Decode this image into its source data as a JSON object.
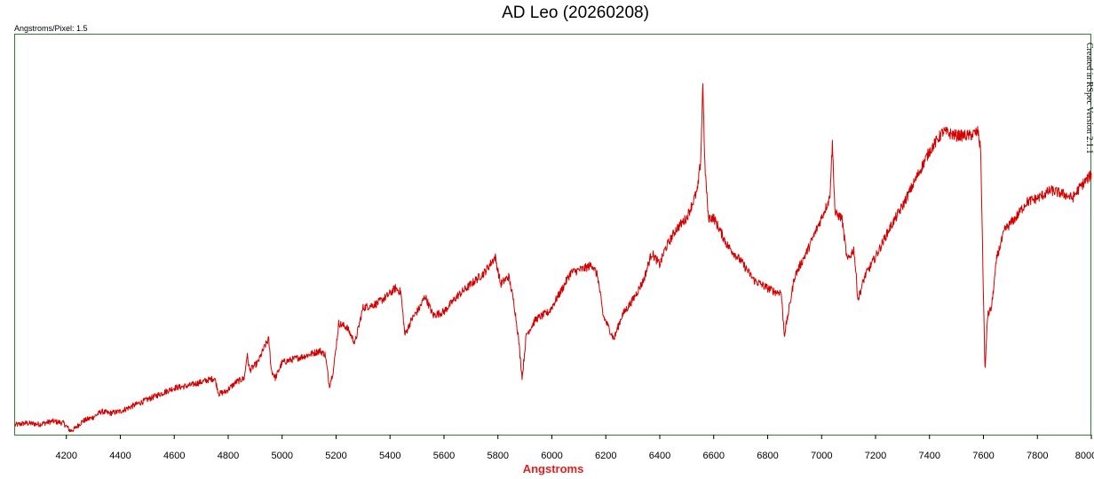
{
  "chart_data": {
    "type": "line",
    "title": "AD Leo (20260208)",
    "subtitle_left": "Angstroms/Pixel: 1.5",
    "credit": "Created in RSpec Version 2.1.1",
    "xlabel": "Angstroms",
    "ylabel": "",
    "xlim": [
      4010,
      8000
    ],
    "ylim": [
      0,
      1
    ],
    "x_ticks": [
      4200,
      4400,
      4600,
      4800,
      5000,
      5200,
      5400,
      5600,
      5800,
      6000,
      6200,
      6400,
      6600,
      6800,
      7000,
      7200,
      7400,
      7600,
      7800,
      8000
    ],
    "grid": false,
    "legend": "none",
    "series": [
      {
        "color": "#d40000",
        "noise": 0.022,
        "points": [
          [
            4010,
            0.02
          ],
          [
            4050,
            0.025
          ],
          [
            4100,
            0.022
          ],
          [
            4150,
            0.03
          ],
          [
            4190,
            0.025
          ],
          [
            4215,
            0.005
          ],
          [
            4230,
            0.01
          ],
          [
            4260,
            0.03
          ],
          [
            4300,
            0.04
          ],
          [
            4330,
            0.055
          ],
          [
            4360,
            0.05
          ],
          [
            4400,
            0.055
          ],
          [
            4450,
            0.07
          ],
          [
            4500,
            0.085
          ],
          [
            4550,
            0.1
          ],
          [
            4600,
            0.115
          ],
          [
            4650,
            0.12
          ],
          [
            4700,
            0.13
          ],
          [
            4750,
            0.14
          ],
          [
            4765,
            0.1
          ],
          [
            4790,
            0.105
          ],
          [
            4830,
            0.13
          ],
          [
            4860,
            0.14
          ],
          [
            4870,
            0.2
          ],
          [
            4880,
            0.16
          ],
          [
            4910,
            0.18
          ],
          [
            4935,
            0.22
          ],
          [
            4950,
            0.24
          ],
          [
            4960,
            0.16
          ],
          [
            4975,
            0.14
          ],
          [
            5000,
            0.18
          ],
          [
            5050,
            0.19
          ],
          [
            5100,
            0.2
          ],
          [
            5140,
            0.21
          ],
          [
            5160,
            0.2
          ],
          [
            5175,
            0.12
          ],
          [
            5190,
            0.16
          ],
          [
            5210,
            0.28
          ],
          [
            5240,
            0.27
          ],
          [
            5270,
            0.23
          ],
          [
            5300,
            0.32
          ],
          [
            5350,
            0.33
          ],
          [
            5390,
            0.35
          ],
          [
            5420,
            0.37
          ],
          [
            5440,
            0.36
          ],
          [
            5455,
            0.25
          ],
          [
            5480,
            0.29
          ],
          [
            5510,
            0.32
          ],
          [
            5530,
            0.35
          ],
          [
            5560,
            0.3
          ],
          [
            5600,
            0.31
          ],
          [
            5650,
            0.35
          ],
          [
            5700,
            0.38
          ],
          [
            5750,
            0.41
          ],
          [
            5790,
            0.45
          ],
          [
            5810,
            0.38
          ],
          [
            5840,
            0.4
          ],
          [
            5860,
            0.33
          ],
          [
            5875,
            0.25
          ],
          [
            5890,
            0.14
          ],
          [
            5905,
            0.25
          ],
          [
            5940,
            0.29
          ],
          [
            5990,
            0.31
          ],
          [
            6040,
            0.37
          ],
          [
            6070,
            0.41
          ],
          [
            6120,
            0.42
          ],
          [
            6150,
            0.43
          ],
          [
            6170,
            0.4
          ],
          [
            6190,
            0.3
          ],
          [
            6210,
            0.27
          ],
          [
            6230,
            0.24
          ],
          [
            6260,
            0.3
          ],
          [
            6300,
            0.34
          ],
          [
            6340,
            0.39
          ],
          [
            6370,
            0.46
          ],
          [
            6400,
            0.43
          ],
          [
            6420,
            0.47
          ],
          [
            6460,
            0.52
          ],
          [
            6500,
            0.55
          ],
          [
            6540,
            0.62
          ],
          [
            6552,
            0.7
          ],
          [
            6560,
            0.9
          ],
          [
            6566,
            0.7
          ],
          [
            6580,
            0.55
          ],
          [
            6600,
            0.55
          ],
          [
            6650,
            0.48
          ],
          [
            6700,
            0.44
          ],
          [
            6750,
            0.39
          ],
          [
            6800,
            0.37
          ],
          [
            6830,
            0.36
          ],
          [
            6850,
            0.36
          ],
          [
            6862,
            0.25
          ],
          [
            6875,
            0.3
          ],
          [
            6900,
            0.4
          ],
          [
            6950,
            0.47
          ],
          [
            7000,
            0.55
          ],
          [
            7030,
            0.6
          ],
          [
            7040,
            0.74
          ],
          [
            7050,
            0.56
          ],
          [
            7075,
            0.55
          ],
          [
            7095,
            0.44
          ],
          [
            7120,
            0.47
          ],
          [
            7135,
            0.34
          ],
          [
            7160,
            0.4
          ],
          [
            7200,
            0.45
          ],
          [
            7250,
            0.52
          ],
          [
            7300,
            0.58
          ],
          [
            7350,
            0.65
          ],
          [
            7400,
            0.72
          ],
          [
            7450,
            0.77
          ],
          [
            7500,
            0.76
          ],
          [
            7550,
            0.76
          ],
          [
            7580,
            0.77
          ],
          [
            7590,
            0.72
          ],
          [
            7600,
            0.35
          ],
          [
            7606,
            0.15
          ],
          [
            7615,
            0.3
          ],
          [
            7630,
            0.32
          ],
          [
            7650,
            0.45
          ],
          [
            7680,
            0.52
          ],
          [
            7720,
            0.55
          ],
          [
            7760,
            0.59
          ],
          [
            7800,
            0.6
          ],
          [
            7850,
            0.62
          ],
          [
            7900,
            0.61
          ],
          [
            7930,
            0.6
          ],
          [
            7960,
            0.63
          ],
          [
            8000,
            0.66
          ]
        ]
      }
    ]
  }
}
